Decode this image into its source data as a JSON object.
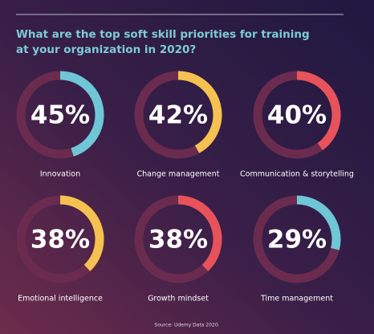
{
  "title": [
    "What are the top soft skill priorities for training",
    "at your organization in 2020?"
  ],
  "source": "Source: Udemy Data 2020.",
  "chart_data": [
    {
      "type": "donut",
      "title": "Innovation",
      "values": [
        45
      ],
      "value_labels": [
        "45%"
      ],
      "color": "#6ec6d6"
    },
    {
      "type": "donut",
      "title": "Change management",
      "values": [
        42
      ],
      "value_labels": [
        "42%"
      ],
      "color": "#f5c150"
    },
    {
      "type": "donut",
      "title": "Communication & storytelling",
      "values": [
        40
      ],
      "value_labels": [
        "40%"
      ],
      "color": "#e8525a"
    },
    {
      "type": "donut",
      "title": "Emotional intelligence",
      "values": [
        38
      ],
      "value_labels": [
        "38%"
      ],
      "color": "#f5c150"
    },
    {
      "type": "donut",
      "title": "Growth mindset",
      "values": [
        38
      ],
      "value_labels": [
        "38%"
      ],
      "color": "#e8525a"
    },
    {
      "type": "donut",
      "title": "Time management",
      "values": [
        29
      ],
      "value_labels": [
        "29%"
      ],
      "color": "#6ec6d6"
    }
  ]
}
